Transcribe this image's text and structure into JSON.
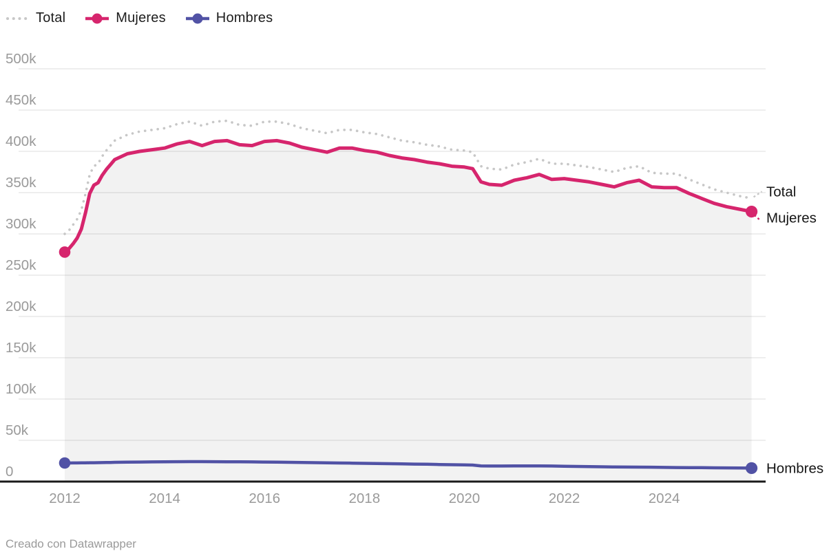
{
  "legend": {
    "items": [
      {
        "label": "Total",
        "color": "#c7c7c7",
        "swatch": "dotted-line"
      },
      {
        "label": "Mujeres",
        "color": "#d6256d",
        "swatch": "line-dot"
      },
      {
        "label": "Hombres",
        "color": "#5152a5",
        "swatch": "line-dot"
      }
    ]
  },
  "footer": {
    "text": "Creado con Datawrapper"
  },
  "colors": {
    "grid": "#e4e4e4",
    "axis": "#1a1a1a",
    "tick_text": "#9a9a9a",
    "end_label_text": "#161616",
    "area_fill": "rgba(20,20,20,0.055)",
    "background": "#ffffff"
  },
  "chart_data": {
    "type": "line",
    "title": "",
    "x_unit": "year (monthly series)",
    "values_unit": "thousands of people (k)",
    "ylim": [
      0,
      500
    ],
    "xlim": [
      2012.0,
      2025.75
    ],
    "grid": true,
    "legend_position": "top-left",
    "y_ticks": [
      {
        "v": 500,
        "label": "500k"
      },
      {
        "v": 450,
        "label": "450k"
      },
      {
        "v": 400,
        "label": "400k"
      },
      {
        "v": 350,
        "label": "350k"
      },
      {
        "v": 300,
        "label": "300k"
      },
      {
        "v": 250,
        "label": "250k"
      },
      {
        "v": 200,
        "label": "200k"
      },
      {
        "v": 150,
        "label": "150k"
      },
      {
        "v": 100,
        "label": "100k"
      },
      {
        "v": 50,
        "label": "50k"
      },
      {
        "v": 0,
        "label": "0"
      }
    ],
    "x_ticks": [
      {
        "v": 2012,
        "label": "2012"
      },
      {
        "v": 2014,
        "label": "2014"
      },
      {
        "v": 2016,
        "label": "2016"
      },
      {
        "v": 2018,
        "label": "2018"
      },
      {
        "v": 2020,
        "label": "2020"
      },
      {
        "v": 2022,
        "label": "2022"
      },
      {
        "v": 2024,
        "label": "2024"
      }
    ],
    "x": [
      2012.0,
      2012.083,
      2012.167,
      2012.25,
      2012.333,
      2012.417,
      2012.5,
      2012.583,
      2012.667,
      2012.75,
      2012.833,
      2012.917,
      2013.0,
      2013.25,
      2013.5,
      2013.75,
      2014.0,
      2014.25,
      2014.5,
      2014.75,
      2015.0,
      2015.25,
      2015.5,
      2015.75,
      2016.0,
      2016.25,
      2016.5,
      2016.75,
      2017.0,
      2017.25,
      2017.5,
      2017.75,
      2018.0,
      2018.25,
      2018.5,
      2018.75,
      2019.0,
      2019.25,
      2019.5,
      2019.75,
      2020.0,
      2020.167,
      2020.333,
      2020.5,
      2020.75,
      2021.0,
      2021.25,
      2021.5,
      2021.75,
      2022.0,
      2022.25,
      2022.5,
      2022.75,
      2023.0,
      2023.25,
      2023.5,
      2023.75,
      2024.0,
      2024.25,
      2024.5,
      2024.75,
      2025.0,
      2025.25,
      2025.5,
      2025.75
    ],
    "series": [
      {
        "name": "Total",
        "end_label": "Total",
        "color": "#c7c7c7",
        "style": "dotted",
        "width": 3.6,
        "end_markers": false,
        "area_fill": false,
        "values": [
          300,
          304,
          311,
          318,
          329,
          349,
          372,
          382,
          385,
          394,
          401,
          407,
          413,
          420,
          424,
          426,
          428,
          433,
          436,
          431,
          436,
          437,
          432,
          431,
          436,
          436,
          433,
          428,
          425,
          422,
          426,
          426,
          423,
          421,
          417,
          413,
          411,
          408,
          406,
          402,
          401,
          399,
          382,
          379,
          378,
          384,
          387,
          391,
          385,
          385,
          383,
          381,
          378,
          375,
          380,
          382,
          374,
          373,
          373,
          366,
          360,
          354,
          350,
          346,
          343
        ]
      },
      {
        "name": "Mujeres",
        "end_label": "Mujeres",
        "color": "#d6256d",
        "style": "solid",
        "width": 5,
        "end_markers": true,
        "area_fill": true,
        "values": [
          278,
          282,
          288,
          295,
          306,
          326,
          349,
          359,
          362,
          371,
          378,
          384,
          390,
          397,
          400,
          402,
          404,
          409,
          412,
          407,
          412,
          413,
          408,
          407,
          412,
          413,
          410,
          405,
          402,
          399,
          404,
          404,
          401,
          399,
          395,
          392,
          390,
          387,
          385,
          382,
          381,
          379,
          363,
          360,
          359,
          365,
          368,
          372,
          366,
          367,
          365,
          363,
          360,
          357,
          362,
          365,
          357,
          356,
          356,
          349,
          343,
          337,
          333,
          330,
          327
        ]
      },
      {
        "name": "Hombres",
        "end_label": "Hombres",
        "color": "#5152a5",
        "style": "solid",
        "width": 4.5,
        "end_markers": true,
        "area_fill": false,
        "values": [
          22.5,
          22.5,
          22.6,
          22.6,
          22.7,
          22.7,
          22.8,
          22.8,
          22.9,
          23.0,
          23.1,
          23.2,
          23.3,
          23.5,
          23.7,
          23.8,
          24.0,
          24.1,
          24.2,
          24.2,
          24.1,
          24.0,
          23.9,
          23.8,
          23.7,
          23.5,
          23.3,
          23.1,
          22.9,
          22.7,
          22.5,
          22.3,
          22.1,
          21.9,
          21.7,
          21.5,
          21.2,
          21.0,
          20.7,
          20.4,
          20.2,
          20.0,
          19.0,
          18.8,
          18.8,
          19.0,
          19.0,
          19.0,
          18.8,
          18.5,
          18.3,
          18.1,
          17.9,
          17.7,
          17.6,
          17.5,
          17.4,
          17.2,
          17.0,
          16.9,
          16.8,
          16.7,
          16.6,
          16.4,
          16.3
        ]
      }
    ]
  }
}
